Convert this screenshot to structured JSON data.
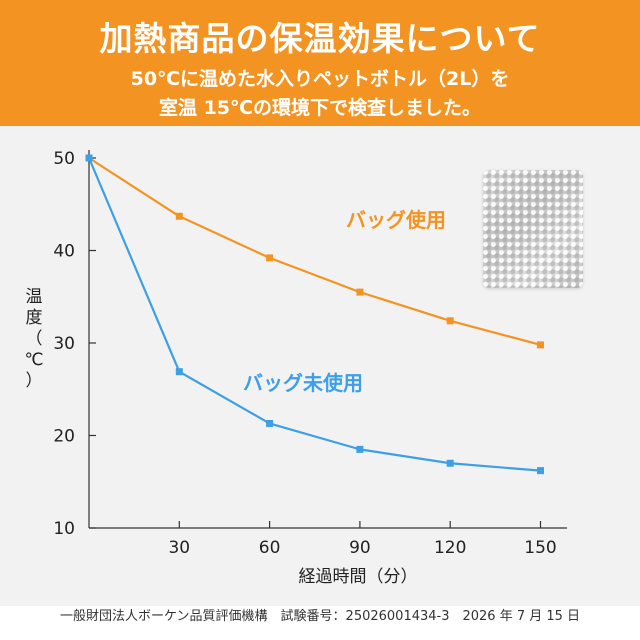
{
  "header": {
    "title": "加熱商品の保温効果について",
    "subtitle_line1": "50℃に温めた水入りペットボトル（2L）を",
    "subtitle_line2": "室温 15℃の環境下で検査しました。"
  },
  "chart_data": {
    "type": "line",
    "x": [
      0,
      30,
      60,
      90,
      120,
      150
    ],
    "x_tick_labels": [
      "30",
      "60",
      "90",
      "120",
      "150"
    ],
    "y_tick_labels": [
      "10",
      "20",
      "30",
      "40",
      "50"
    ],
    "xlim": [
      0,
      155
    ],
    "ylim": [
      10,
      50
    ],
    "xlabel": "経過時間（分）",
    "ylabel_chars": [
      "温",
      "度",
      "（",
      "℃",
      "）"
    ],
    "grid": false,
    "series": [
      {
        "name": "バッグ使用",
        "color": "#f39422",
        "values": [
          50,
          43.7,
          39.2,
          35.5,
          32.4,
          29.8
        ]
      },
      {
        "name": "バッグ未使用",
        "color": "#3d9fe6",
        "values": [
          50,
          26.9,
          21.3,
          18.5,
          17.0,
          16.2
        ]
      }
    ]
  },
  "image": {
    "icon": "insulated-bag-photo"
  },
  "footer": {
    "text": "一般財団法人ボーケン品質評価機構　試験番号：25026001434-3　2026 年 7 月 15 日"
  }
}
